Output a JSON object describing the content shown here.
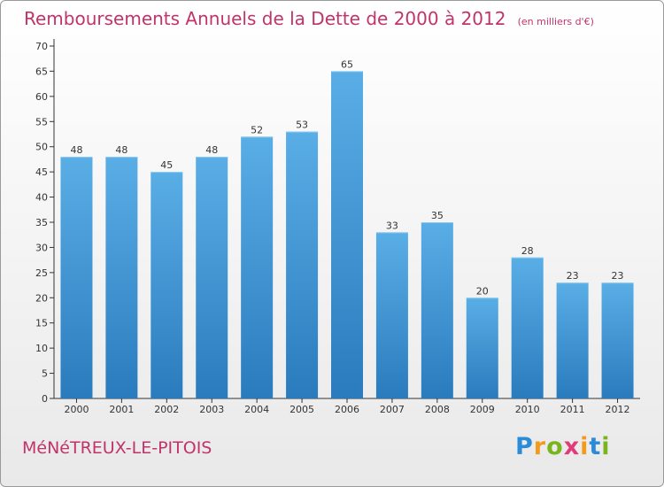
{
  "chart_data": {
    "type": "bar",
    "title": "Remboursements Annuels de la Dette de 2000 à 2012",
    "subtitle": "(en milliers d'€)",
    "categories": [
      "2000",
      "2001",
      "2002",
      "2003",
      "2004",
      "2005",
      "2006",
      "2007",
      "2008",
      "2009",
      "2010",
      "2011",
      "2012"
    ],
    "values": [
      48,
      48,
      45,
      48,
      52,
      53,
      65,
      33,
      35,
      20,
      28,
      23,
      23
    ],
    "ylim": [
      0,
      70
    ],
    "ytick_step": 5,
    "xlabel": "",
    "ylabel": "",
    "grid": false,
    "bar_color_top": "#5aaee6",
    "bar_color_bottom": "#2a7bbd"
  },
  "footer": {
    "town": "MéNéTREUX-LE-PITOIS",
    "logo_letters": [
      "P",
      "r",
      "o",
      "x",
      "i",
      "t",
      "i"
    ],
    "logo_colors": [
      "#2b8bd6",
      "#f29a1c",
      "#7ab51d",
      "#e23a7a",
      "#f29a1c",
      "#2b8bd6",
      "#7ab51d"
    ]
  },
  "colors": {
    "title": "#c0346a"
  }
}
